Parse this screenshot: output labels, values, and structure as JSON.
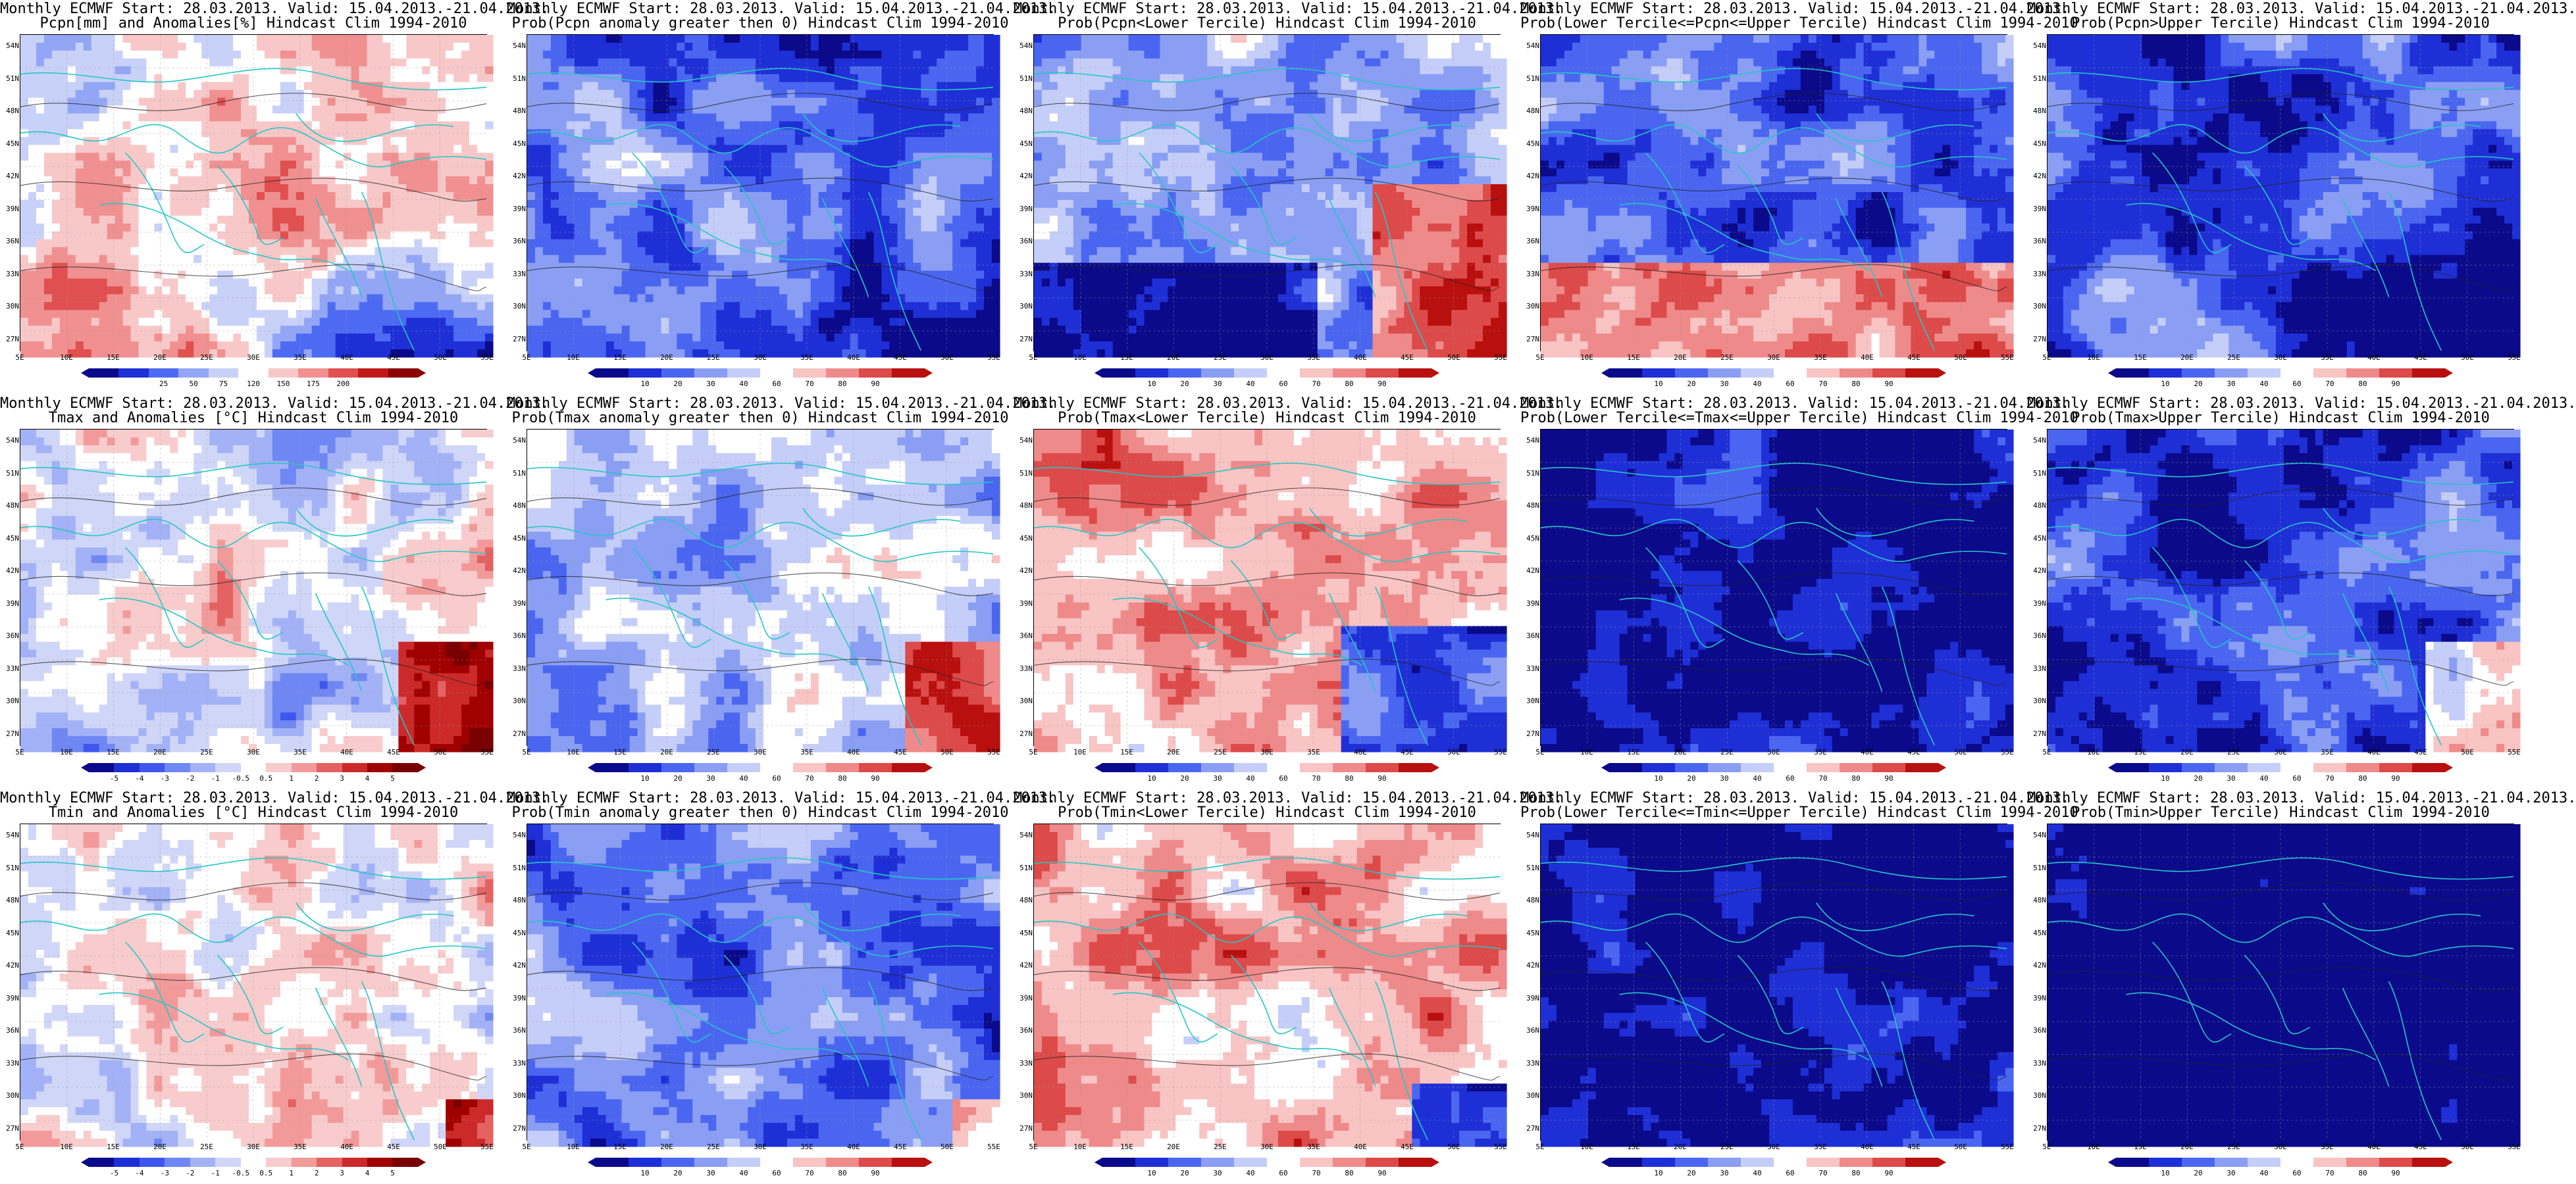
{
  "page_title": "",
  "x_ticks": [
    "5E",
    "10E",
    "15E",
    "20E",
    "25E",
    "30E",
    "35E",
    "40E",
    "45E",
    "50E",
    "55E"
  ],
  "y_ticks": [
    "54N",
    "51N",
    "48N",
    "45N",
    "42N",
    "39N",
    "36N",
    "33N",
    "30N",
    "27N"
  ],
  "scales": {
    "anom_pcpn": {
      "labels": [
        "25",
        "50",
        "75",
        "120",
        "150",
        "175",
        "200"
      ],
      "colors": [
        "#0a0a8a",
        "#1f2fd6",
        "#4d6bf2",
        "#93a6f5",
        "#c8d1f8",
        "#ffffff",
        "#f8c8c8",
        "#f09090",
        "#e05050",
        "#c01818",
        "#8a0000"
      ]
    },
    "temp_anom": {
      "labels": [
        "-5",
        "-4",
        "-3",
        "-2",
        "-1",
        "-0.5",
        "0.5",
        "1",
        "2",
        "3",
        "4",
        "5"
      ],
      "colors": [
        "#0a0a8a",
        "#1f2fd6",
        "#3f56ee",
        "#6f87f2",
        "#a3b2f6",
        "#cfd6f8",
        "#ffffff",
        "#f8cccc",
        "#f29a9a",
        "#e46262",
        "#cc2a2a",
        "#a00000",
        "#780000"
      ]
    },
    "prob": {
      "labels": [
        "10",
        "20",
        "30",
        "40",
        "60",
        "70",
        "80",
        "90"
      ],
      "colors": [
        "#0a0a8a",
        "#1f2fd6",
        "#4a66f0",
        "#8a9ef4",
        "#c5cef8",
        "#ffffff",
        "#f8c4c4",
        "#ef8a8a",
        "#dd4a4a",
        "#b80f0f"
      ]
    }
  },
  "panels": [
    {
      "row": 0,
      "col": 0,
      "name": "pcpn-anomaly",
      "title1": "Monthly ECMWF Start: 28.03.2013. Valid: 15.04.2013.-21.04.2013.",
      "title2": "Pcpn[mm] and Anomalies[%] Hindcast Clim 1994-2010",
      "scale": "anom_pcpn",
      "pattern": "pcpn",
      "bias": 0.15
    },
    {
      "row": 0,
      "col": 1,
      "name": "prob-pcpn-anomaly-gt0",
      "title1": "Monthly ECMWF Start: 28.03.2013. Valid: 15.04.2013.-21.04.2013.",
      "title2": "Prob(Pcpn anomaly greater then 0) Hindcast Clim 1994-2010",
      "scale": "prob",
      "pattern": "pcpn",
      "bias": -0.1
    },
    {
      "row": 0,
      "col": 2,
      "name": "prob-pcpn-lower-tercile",
      "title1": "Monthly ECMWF Start: 28.03.2013. Valid: 15.04.2013.-21.04.2013.",
      "title2": "Prob(Pcpn<Lower Tercile) Hindcast Clim 1994-2010",
      "scale": "prob",
      "pattern": "lowerTercile",
      "bias": 0.05
    },
    {
      "row": 0,
      "col": 3,
      "name": "prob-pcpn-middle-tercile",
      "title1": "Monthly ECMWF Start: 28.03.2013. Valid: 15.04.2013.-21.04.2013.",
      "title2": "Prob(Lower Tercile<=Pcpn<=Upper Tercile) Hindcast Clim 1994-2010",
      "scale": "prob",
      "pattern": "middleTercile",
      "bias": -0.1
    },
    {
      "row": 0,
      "col": 4,
      "name": "prob-pcpn-upper-tercile",
      "title1": "Monthly ECMWF Start: 28.03.2013. Valid: 15.04.2013.-21.04.2013.",
      "title2": "Prob(Pcpn>Upper Tercile) Hindcast Clim 1994-2010",
      "scale": "prob",
      "pattern": "pcpn",
      "bias": -0.2
    },
    {
      "row": 1,
      "col": 0,
      "name": "tmax-anomaly",
      "title1": "Monthly ECMWF Start: 28.03.2013. Valid: 15.04.2013.-21.04.2013.",
      "title2": "Tmax and Anomalies [°C] Hindcast Clim 1994-2010",
      "scale": "temp_anom",
      "pattern": "tmax",
      "bias": 0.05
    },
    {
      "row": 1,
      "col": 1,
      "name": "prob-tmax-anomaly-gt0",
      "title1": "Monthly ECMWF Start: 28.03.2013. Valid: 15.04.2013.-21.04.2013.",
      "title2": "Prob(Tmax anomaly greater then 0) Hindcast Clim 1994-2010",
      "scale": "prob",
      "pattern": "tmax",
      "bias": 0.0
    },
    {
      "row": 1,
      "col": 2,
      "name": "prob-tmax-lower-tercile",
      "title1": "Monthly ECMWF Start: 28.03.2013. Valid: 15.04.2013.-21.04.2013.",
      "title2": "Prob(Tmax<Lower Tercile) Hindcast Clim 1994-2010",
      "scale": "prob",
      "pattern": "tmaxLower",
      "bias": 0.1
    },
    {
      "row": 1,
      "col": 3,
      "name": "prob-tmax-middle-tercile",
      "title1": "Monthly ECMWF Start: 28.03.2013. Valid: 15.04.2013.-21.04.2013.",
      "title2": "Prob(Lower Tercile<=Tmax<=Upper Tercile) Hindcast Clim 1994-2010",
      "scale": "prob",
      "pattern": "mid",
      "bias": -0.25
    },
    {
      "row": 1,
      "col": 4,
      "name": "prob-tmax-upper-tercile",
      "title1": "Monthly ECMWF Start: 28.03.2013. Valid: 15.04.2013.-21.04.2013.",
      "title2": "Prob(Tmax>Upper Tercile) Hindcast Clim 1994-2010",
      "scale": "prob",
      "pattern": "tmax",
      "bias": -0.25
    },
    {
      "row": 2,
      "col": 0,
      "name": "tmin-anomaly",
      "title1": "Monthly ECMWF Start: 28.03.2013. Valid: 15.04.2013.-21.04.2013.",
      "title2": "Tmin and Anomalies [°C] Hindcast Clim 1994-2010",
      "scale": "temp_anom",
      "pattern": "tmin",
      "bias": 0.1
    },
    {
      "row": 2,
      "col": 1,
      "name": "prob-tmin-anomaly-gt0",
      "title1": "Monthly ECMWF Start: 28.03.2013. Valid: 15.04.2013.-21.04.2013.",
      "title2": "Prob(Tmin anomaly greater then 0) Hindcast Clim 1994-2010",
      "scale": "prob",
      "pattern": "tmin",
      "bias": -0.1
    },
    {
      "row": 2,
      "col": 2,
      "name": "prob-tmin-lower-tercile",
      "title1": "Monthly ECMWF Start: 28.03.2013. Valid: 15.04.2013.-21.04.2013.",
      "title2": "Prob(Tmin<Lower Tercile) Hindcast Clim 1994-2010",
      "scale": "prob",
      "pattern": "tminLower",
      "bias": 0.1
    },
    {
      "row": 2,
      "col": 3,
      "name": "prob-tmin-middle-tercile",
      "title1": "Monthly ECMWF Start: 28.03.2013. Valid: 15.04.2013.-21.04.2013.",
      "title2": "Prob(Lower Tercile<=Tmin<=Upper Tercile) Hindcast Clim 1994-2010",
      "scale": "prob",
      "pattern": "mid",
      "bias": -0.3
    },
    {
      "row": 2,
      "col": 4,
      "name": "prob-tmin-upper-tercile",
      "title1": "Monthly ECMWF Start: 28.03.2013. Valid: 15.04.2013.-21.04.2013.",
      "title2": "Prob(Tmin>Upper Tercile) Hindcast Clim 1994-2010",
      "scale": "prob",
      "pattern": "mid",
      "bias": -0.4
    }
  ]
}
